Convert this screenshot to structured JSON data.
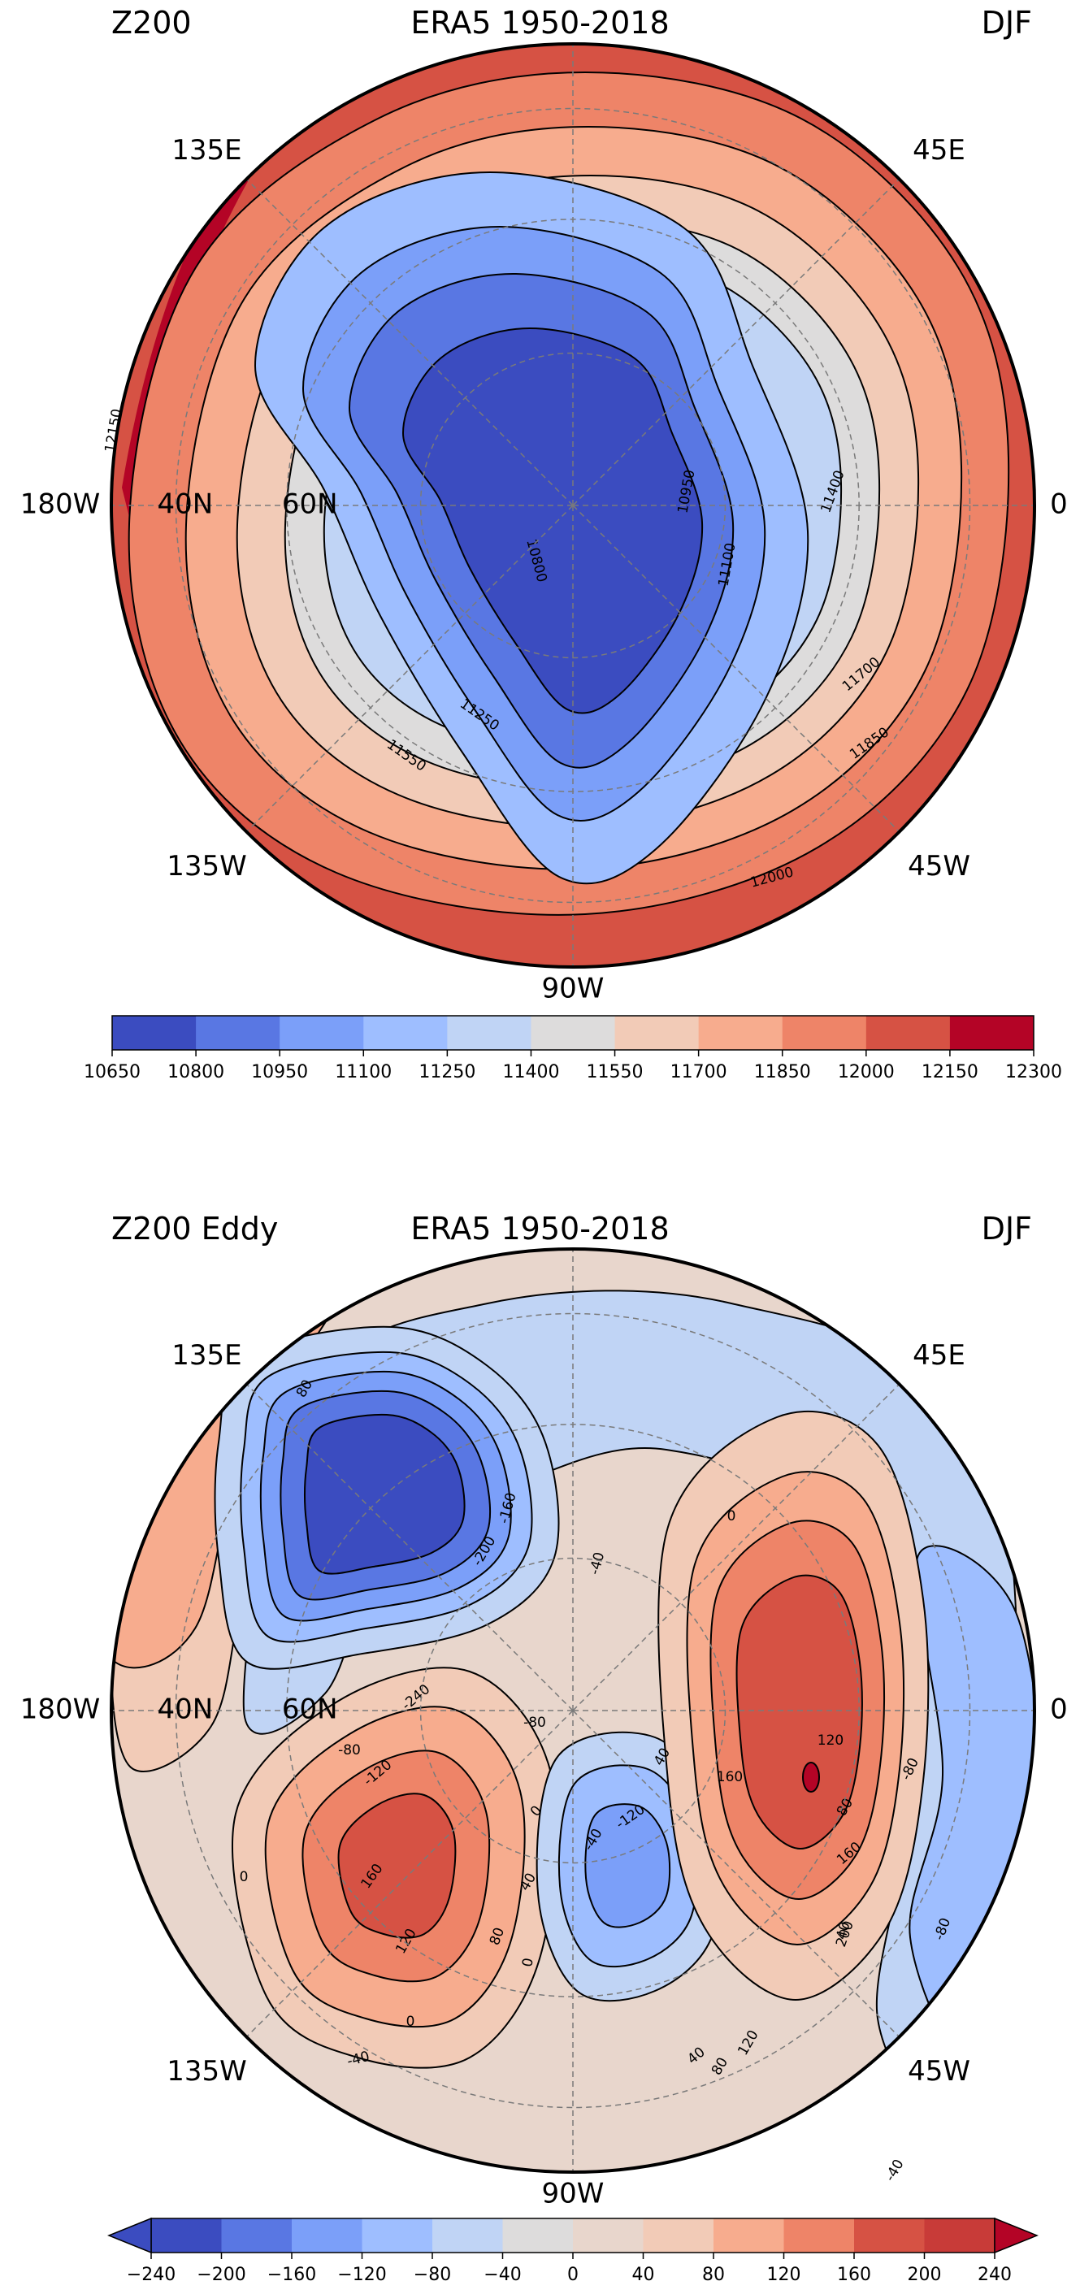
{
  "chart_data": [
    {
      "type": "heatmap",
      "projection": "north-polar-stereographic",
      "title_left": "Z200",
      "title_center": "ERA5 1950-2018",
      "title_right": "DJF",
      "lon_labels": [
        "135E",
        "45E",
        "180W",
        "0",
        "135W",
        "45W",
        "90W"
      ],
      "lat_labels": [
        "40N",
        "60N"
      ],
      "levels": [
        10650,
        10800,
        10950,
        11100,
        11250,
        11400,
        11550,
        11700,
        11850,
        12000,
        12150,
        12300
      ],
      "colors": [
        "#3b4cc0",
        "#5977e3",
        "#7b9ff9",
        "#9ebeff",
        "#c0d4f5",
        "#dddcdc",
        "#f2cbb7",
        "#f7ac8e",
        "#ee8468",
        "#d65244",
        "#b40426"
      ],
      "colorbar_ticks": [
        "10650",
        "10800",
        "10950",
        "11100",
        "11250",
        "11400",
        "11550",
        "11700",
        "11850",
        "12000",
        "12150",
        "12300"
      ],
      "contour_labels": [
        "12150",
        "10950",
        "11400",
        "10800",
        "11100",
        "11700",
        "11250",
        "11550",
        "11850",
        "12000"
      ],
      "grid": true,
      "colorbar_position": "bottom"
    },
    {
      "type": "heatmap",
      "projection": "north-polar-stereographic",
      "title_left": "Z200 Eddy",
      "title_center": "ERA5 1950-2018",
      "title_right": "DJF",
      "lon_labels": [
        "135E",
        "45E",
        "180W",
        "0",
        "135W",
        "45W",
        "90W"
      ],
      "lat_labels": [
        "40N",
        "60N"
      ],
      "levels": [
        -240,
        -200,
        -160,
        -120,
        -80,
        -40,
        0,
        40,
        80,
        120,
        160,
        200,
        240
      ],
      "colors": [
        "#3b4cc0",
        "#5977e3",
        "#7b9ff9",
        "#9ebeff",
        "#c0d4f5",
        "#dddcdc",
        "#e8d6cc",
        "#f2cbb7",
        "#f7ac8e",
        "#ee8468",
        "#d65244",
        "#c83b38"
      ],
      "extend": "both",
      "colorbar_ticks": [
        "−240",
        "−200",
        "−160",
        "−120",
        "−80",
        "−40",
        "0",
        "40",
        "80",
        "120",
        "160",
        "200",
        "240"
      ],
      "contour_labels": [
        "80",
        "-160",
        "-40",
        "0",
        "-200",
        "-80",
        "-240",
        "-80",
        "-120",
        "120",
        "80",
        "40",
        "160",
        "160",
        "40",
        "0",
        "120",
        "-40",
        "40",
        "0",
        "200",
        "160",
        "-120",
        "0",
        "120",
        "40",
        "-80",
        "-80",
        "80",
        "0",
        "-40",
        "80",
        "-40"
      ],
      "grid": true,
      "colorbar_position": "bottom"
    }
  ]
}
